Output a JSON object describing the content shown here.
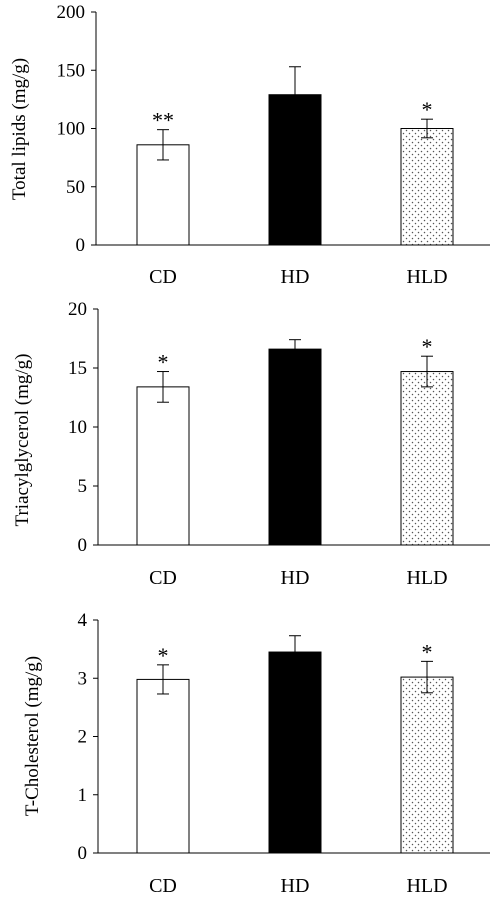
{
  "colors": {
    "cd_fill": "#ffffff",
    "hd_fill": "#000000",
    "hld_pattern": "dotted",
    "axis": "#000000"
  },
  "chart_data": [
    {
      "type": "bar",
      "ylabel": "Total lipids (mg/g)",
      "ylim": [
        0,
        200
      ],
      "yticks": [
        0,
        50,
        100,
        150,
        200
      ],
      "categories": [
        "CD",
        "HD",
        "HLD"
      ],
      "values": [
        86,
        129,
        100
      ],
      "errors": [
        13,
        24,
        8
      ],
      "significance": [
        "**",
        "",
        "*"
      ],
      "grid": false
    },
    {
      "type": "bar",
      "ylabel": "Triacylglycerol (mg/g)",
      "ylim": [
        0,
        20
      ],
      "yticks": [
        0,
        5,
        10,
        15,
        20
      ],
      "categories": [
        "CD",
        "HD",
        "HLD"
      ],
      "values": [
        13.4,
        16.6,
        14.7
      ],
      "errors": [
        1.3,
        0.8,
        1.3
      ],
      "significance": [
        "*",
        "",
        "*"
      ],
      "grid": false
    },
    {
      "type": "bar",
      "ylabel": "T-Cholesterol (mg/g)",
      "ylim": [
        0,
        4
      ],
      "yticks": [
        0,
        1,
        2,
        3,
        4
      ],
      "categories": [
        "CD",
        "HD",
        "HLD"
      ],
      "values": [
        2.98,
        3.45,
        3.02
      ],
      "errors": [
        0.25,
        0.28,
        0.27
      ],
      "significance": [
        "*",
        "",
        "*"
      ],
      "grid": false
    }
  ]
}
